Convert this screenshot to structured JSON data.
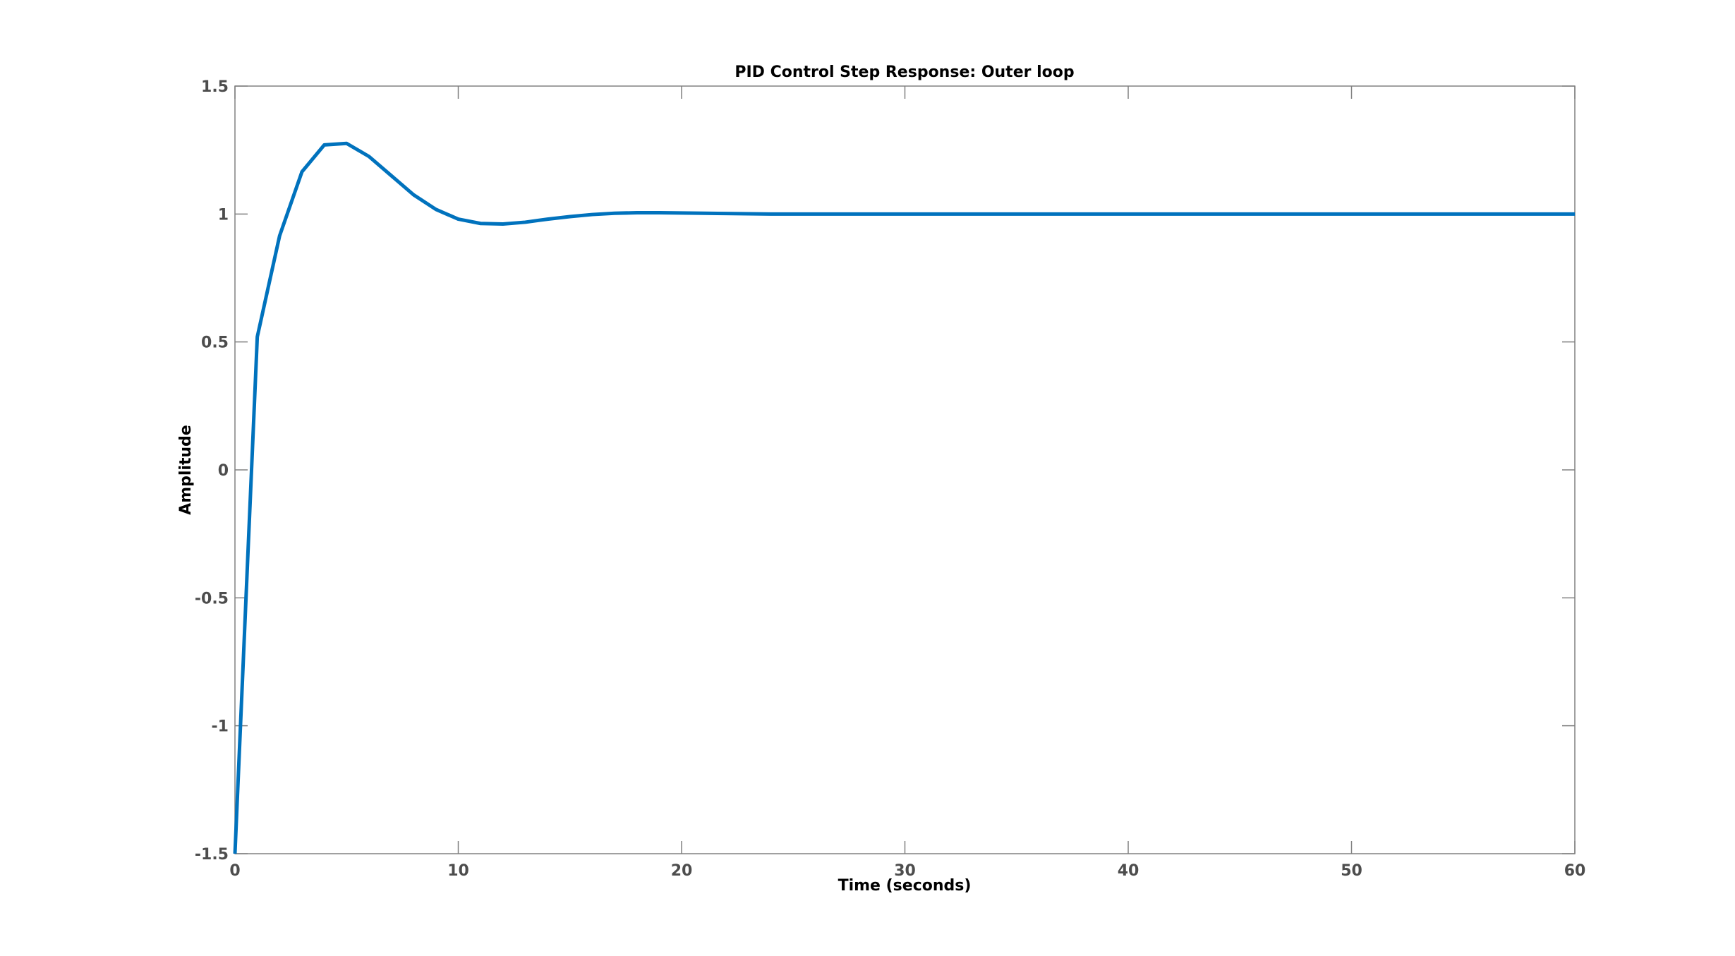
{
  "chart_data": {
    "type": "line",
    "title": "PID Control Step Response: Outer loop",
    "xlabel": "Time (seconds)",
    "ylabel": "Amplitude",
    "xlim": [
      0,
      60
    ],
    "ylim": [
      -1.5,
      1.5
    ],
    "xticks": [
      0,
      10,
      20,
      30,
      40,
      50,
      60
    ],
    "xtick_labels": [
      "0",
      "10",
      "20",
      "30",
      "40",
      "50",
      "60"
    ],
    "yticks": [
      -1.5,
      -1,
      -0.5,
      0,
      0.5,
      1,
      1.5
    ],
    "ytick_labels": [
      "-1.5",
      "-1",
      "-0.5",
      "0",
      "0.5",
      "1",
      "1.5"
    ],
    "grid": false,
    "colors": {
      "series": "#0072BD",
      "axes": "#808080",
      "tick_text": "#4d4d4d"
    },
    "series": [
      {
        "x": [
          0,
          1,
          2,
          3,
          4,
          5,
          6,
          7,
          8,
          9,
          10,
          11,
          12,
          13,
          14,
          15,
          16,
          17,
          18,
          19,
          20,
          21,
          22,
          23,
          24,
          25,
          26,
          27,
          28,
          29,
          30,
          31,
          32,
          33,
          34,
          35,
          36,
          37,
          38,
          39,
          40,
          41,
          42,
          43,
          44,
          45,
          46,
          47,
          48,
          49,
          50,
          51,
          52,
          53,
          54,
          55,
          56,
          57,
          58,
          59,
          60
        ],
        "y": [
          -1.5,
          0.52,
          0.915,
          1.165,
          1.27,
          1.276,
          1.225,
          1.15,
          1.075,
          1.018,
          0.98,
          0.963,
          0.961,
          0.968,
          0.98,
          0.99,
          0.998,
          1.003,
          1.005,
          1.005,
          1.004,
          1.003,
          1.002,
          1.001,
          1.0,
          1.0,
          1.0,
          1.0,
          1.0,
          1.0,
          1.0,
          1.0,
          1.0,
          1.0,
          1.0,
          1.0,
          1.0,
          1.0,
          1.0,
          1.0,
          1.0,
          1.0,
          1.0,
          1.0,
          1.0,
          1.0,
          1.0,
          1.0,
          1.0,
          1.0,
          1.0,
          1.0,
          1.0,
          1.0,
          1.0,
          1.0,
          1.0,
          1.0,
          1.0,
          1.0,
          1.0
        ]
      }
    ]
  }
}
